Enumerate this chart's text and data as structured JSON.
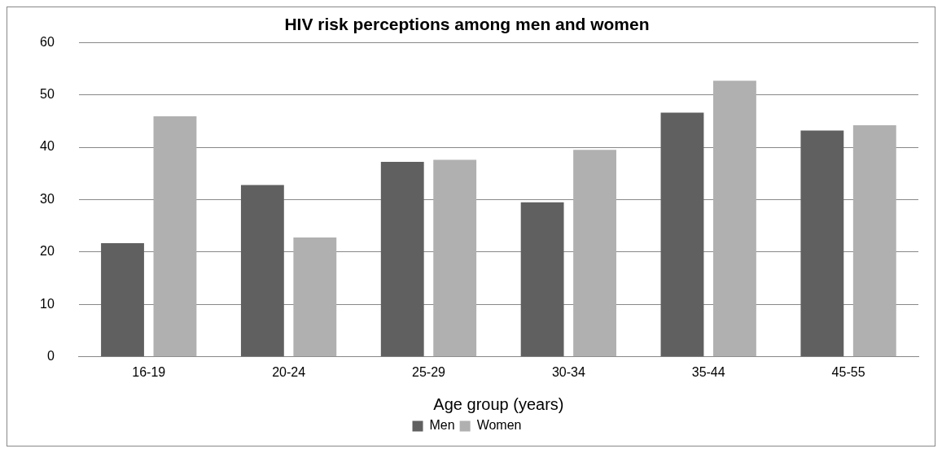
{
  "chart_data": {
    "type": "bar",
    "title": "HIV risk perceptions among men and women",
    "xlabel": "Age group (years)",
    "categories": [
      "16-19",
      "20-24",
      "25-29",
      "30-34",
      "35-44",
      "45-55"
    ],
    "series": [
      {
        "name": "Men",
        "color": "#606060",
        "values": [
          21.7,
          32.8,
          37.2,
          29.5,
          46.6,
          43.2
        ]
      },
      {
        "name": "Women",
        "color": "#b0b0b0",
        "values": [
          45.9,
          22.8,
          37.6,
          39.5,
          52.7,
          44.2
        ]
      }
    ],
    "ylim": [
      0,
      60
    ],
    "yticks": [
      0,
      10,
      20,
      30,
      40,
      50,
      60
    ],
    "grid": "y",
    "legend": "bottom"
  }
}
